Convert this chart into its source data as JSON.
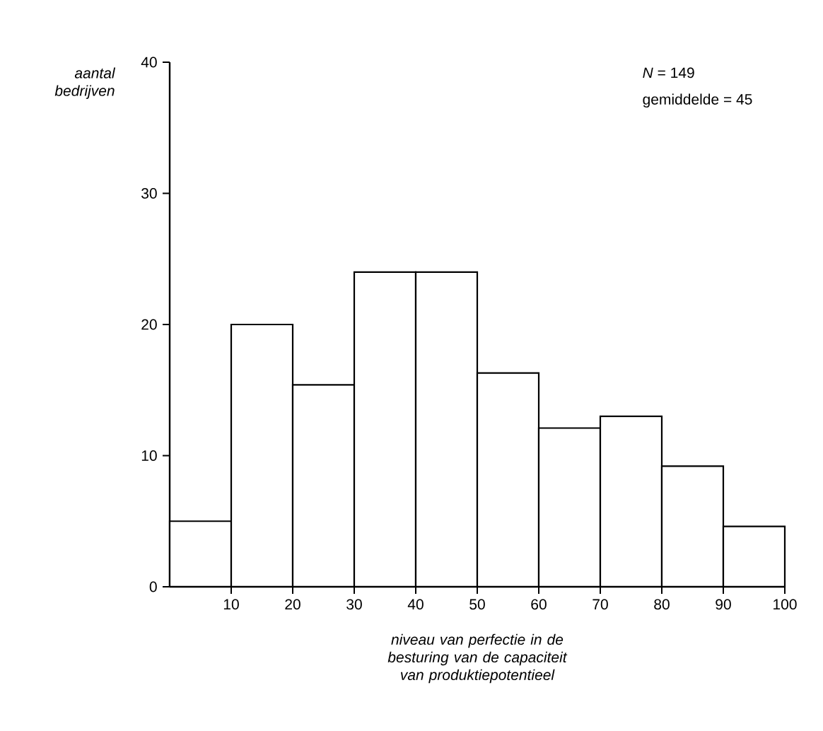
{
  "chart_data": {
    "type": "histogram",
    "ylabel": "aantal bedrijven",
    "xlabel": "niveau van perfectie in de besturing van de capaciteit van produktiepotentieel",
    "annotations": [
      "*N* = 149",
      "gemiddelde = 45"
    ],
    "bins": [
      0,
      10,
      20,
      30,
      40,
      50,
      60,
      70,
      80,
      90,
      100
    ],
    "values": [
      5,
      20,
      15.4,
      24,
      24,
      16.3,
      12.1,
      13,
      9.2,
      4.6
    ],
    "color": "#000000",
    "xlim": [
      0,
      100
    ],
    "xticks": [
      10,
      20,
      30,
      40,
      50,
      60,
      70,
      80,
      90,
      100
    ],
    "ylim": [
      0,
      40
    ],
    "yticks": [
      0,
      10,
      20,
      30,
      40
    ]
  }
}
